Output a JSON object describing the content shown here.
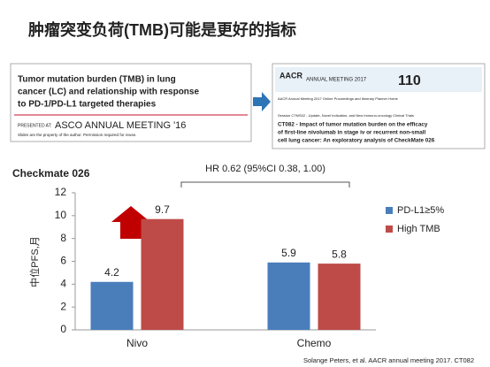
{
  "title": "肿瘤突变负荷(TMB)可能是更好的指标",
  "left_image": {
    "heading": [
      "Tumor mutation burden (TMB) in lung",
      "cancer (LC) and relationship with response",
      "to PD-1/PD-L1 targeted therapies"
    ],
    "presented": "PRESENTED AT:",
    "meeting": "ASCO ANNUAL MEETING '16",
    "note": "Slides are the property of the author. Permission required for reuse."
  },
  "right_image": {
    "logo": "AACR",
    "banner": "ANNUAL MEETING 2017",
    "anniversary": "110",
    "nav": "AACR Annual Meeting 2017 Online Proceedings and Itinerary Planner Home",
    "session": "Session CTMS02 - Update, Novel Indication, and New Immuno-oncology Clinical Trials",
    "abstract": [
      "CT082 - Impact of tumor mutation burden on the efficacy",
      "of first-line nivolumab in stage iv or recurrent non-small",
      "cell lung cancer: An exploratory analysis of CheckMate 026"
    ]
  },
  "chart_data": {
    "type": "bar",
    "title": "Checkmate 026",
    "y_label": "中位PFS,月",
    "annotation": "HR 0.62 (95%CI 0.38, 1.00)",
    "categories": [
      "Nivo",
      "Chemo"
    ],
    "series": [
      {
        "name": "PD-L1≥5%",
        "color": "#4a7ebb",
        "values": [
          4.2,
          5.9
        ]
      },
      {
        "name": "High TMB",
        "color": "#be4b48",
        "values": [
          9.7,
          5.8
        ]
      }
    ],
    "ylim": [
      0,
      12
    ],
    "yticks": [
      0,
      2,
      4,
      6,
      8,
      10,
      12
    ],
    "grid": false,
    "legend": "right"
  },
  "footer": "Solange Peters, et al. AACR annual meeting 2017. CT082"
}
